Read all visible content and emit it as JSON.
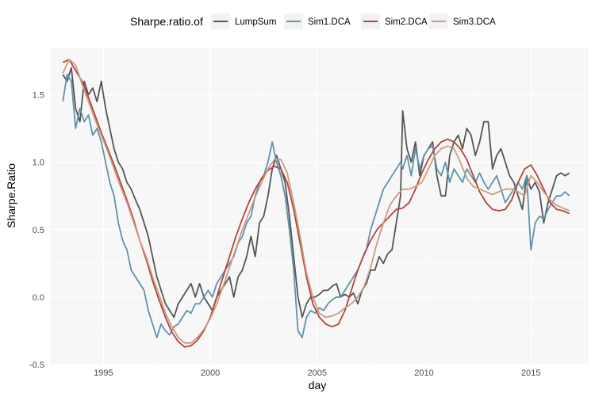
{
  "chart_data": {
    "type": "line",
    "xlabel": "day",
    "ylabel": "Sharpe.Ratio",
    "xlim": [
      1992.5,
      2017.7
    ],
    "ylim": [
      -0.5,
      1.85
    ],
    "xticks": [
      1995,
      2000,
      2005,
      2010,
      2015
    ],
    "yticks": [
      -0.5,
      0.0,
      0.5,
      1.0,
      1.5
    ],
    "xtick_labels": [
      "1995",
      "2000",
      "2005",
      "2010",
      "2015"
    ],
    "ytick_labels": [
      "-0.5",
      "0.0",
      "0.5",
      "1.0",
      "1.5"
    ],
    "grid": true,
    "legend": {
      "title": "Sharpe.ratio.of",
      "position": "top"
    },
    "series": [
      {
        "name": "LumpSum",
        "color": "#555555",
        "x": [
          1993.1,
          1993.3,
          1993.5,
          1993.7,
          1993.9,
          1994.1,
          1994.3,
          1994.5,
          1994.7,
          1994.9,
          1995.1,
          1995.3,
          1995.5,
          1995.7,
          1995.9,
          1996.1,
          1996.3,
          1996.5,
          1996.7,
          1996.9,
          1997.1,
          1997.3,
          1997.5,
          1997.7,
          1997.9,
          1998.1,
          1998.3,
          1998.5,
          1998.7,
          1998.9,
          1999.1,
          1999.3,
          1999.5,
          1999.7,
          1999.9,
          2000.1,
          2000.3,
          2000.5,
          2000.7,
          2000.9,
          2001.1,
          2001.3,
          2001.5,
          2001.7,
          2001.9,
          2002.1,
          2002.3,
          2002.5,
          2002.7,
          2002.9,
          2003.1,
          2003.3,
          2003.5,
          2003.7,
          2003.9,
          2004.1,
          2004.3,
          2004.5,
          2004.7,
          2004.9,
          2005.1,
          2005.3,
          2005.5,
          2005.7,
          2005.9,
          2006.1,
          2006.3,
          2006.5,
          2006.7,
          2006.9,
          2007.1,
          2007.3,
          2007.5,
          2007.7,
          2007.9,
          2008.1,
          2008.3,
          2008.5,
          2008.7,
          2008.9,
          2009.0,
          2009.2,
          2009.4,
          2009.6,
          2009.8,
          2010.0,
          2010.2,
          2010.4,
          2010.6,
          2010.8,
          2011.0,
          2011.2,
          2011.4,
          2011.6,
          2011.8,
          2012.0,
          2012.2,
          2012.4,
          2012.6,
          2012.8,
          2013.0,
          2013.2,
          2013.4,
          2013.6,
          2013.8,
          2014.0,
          2014.2,
          2014.4,
          2014.6,
          2014.8,
          2015.0,
          2015.2,
          2015.4,
          2015.6,
          2015.8,
          2016.0,
          2016.2,
          2016.4,
          2016.6,
          2016.8
        ],
        "values": [
          1.65,
          1.6,
          1.7,
          1.4,
          1.3,
          1.6,
          1.5,
          1.55,
          1.45,
          1.6,
          1.4,
          1.25,
          1.1,
          1.0,
          0.95,
          0.85,
          0.8,
          0.72,
          0.65,
          0.55,
          0.45,
          0.3,
          0.15,
          0.05,
          -0.05,
          -0.1,
          -0.15,
          -0.05,
          0.0,
          0.05,
          0.1,
          0.0,
          0.1,
          0.0,
          -0.05,
          -0.1,
          0.0,
          0.05,
          0.1,
          0.15,
          0.0,
          0.15,
          0.2,
          0.3,
          0.45,
          0.3,
          0.55,
          0.6,
          0.75,
          0.95,
          1.05,
          0.95,
          0.85,
          0.6,
          0.3,
          0.0,
          -0.15,
          -0.05,
          0.0,
          0.0,
          0.02,
          0.05,
          0.05,
          0.08,
          0.1,
          0.0,
          0.02,
          0.0,
          0.03,
          -0.05,
          0.05,
          0.1,
          0.2,
          0.2,
          0.3,
          0.25,
          0.32,
          0.35,
          0.55,
          0.75,
          1.38,
          1.1,
          1.0,
          1.15,
          0.9,
          1.05,
          1.1,
          1.15,
          0.9,
          0.75,
          0.75,
          1.05,
          1.15,
          1.2,
          1.1,
          1.25,
          1.2,
          1.05,
          1.15,
          1.3,
          1.3,
          0.95,
          1.05,
          1.1,
          1.0,
          0.9,
          0.85,
          0.75,
          0.65,
          0.9,
          0.8,
          0.85,
          0.78,
          0.55,
          0.7,
          0.8,
          0.9,
          0.92,
          0.9,
          0.92
        ]
      },
      {
        "name": "Sim1.DCA",
        "color": "#5f93aa",
        "x": [
          1993.1,
          1993.3,
          1993.5,
          1993.7,
          1993.9,
          1994.1,
          1994.3,
          1994.5,
          1994.7,
          1994.9,
          1995.1,
          1995.3,
          1995.5,
          1995.7,
          1995.9,
          1996.1,
          1996.3,
          1996.5,
          1996.7,
          1996.9,
          1997.1,
          1997.3,
          1997.5,
          1997.7,
          1997.9,
          1998.1,
          1998.3,
          1998.5,
          1998.7,
          1998.9,
          1999.1,
          1999.3,
          1999.5,
          1999.7,
          1999.9,
          2000.1,
          2000.3,
          2000.5,
          2000.7,
          2000.9,
          2001.1,
          2001.3,
          2001.5,
          2001.7,
          2001.9,
          2002.1,
          2002.3,
          2002.5,
          2002.7,
          2002.9,
          2003.1,
          2003.3,
          2003.5,
          2003.7,
          2003.9,
          2004.1,
          2004.3,
          2004.5,
          2004.7,
          2004.9,
          2005.1,
          2005.3,
          2005.5,
          2005.7,
          2005.9,
          2006.1,
          2006.3,
          2006.5,
          2006.7,
          2006.9,
          2007.1,
          2007.3,
          2007.5,
          2007.7,
          2007.9,
          2008.1,
          2008.3,
          2008.5,
          2008.7,
          2008.9,
          2009.0,
          2009.2,
          2009.4,
          2009.6,
          2009.8,
          2010.0,
          2010.2,
          2010.4,
          2010.6,
          2010.8,
          2011.0,
          2011.2,
          2011.4,
          2011.6,
          2011.8,
          2012.0,
          2012.2,
          2012.4,
          2012.6,
          2012.8,
          2013.0,
          2013.2,
          2013.4,
          2013.6,
          2013.8,
          2014.0,
          2014.2,
          2014.4,
          2014.6,
          2014.8,
          2015.0,
          2015.2,
          2015.4,
          2015.6,
          2015.8,
          2016.0,
          2016.2,
          2016.4,
          2016.6,
          2016.8
        ],
        "values": [
          1.45,
          1.65,
          1.6,
          1.25,
          1.4,
          1.3,
          1.35,
          1.2,
          1.25,
          1.15,
          1.0,
          0.85,
          0.75,
          0.55,
          0.42,
          0.35,
          0.2,
          0.15,
          0.1,
          0.05,
          -0.1,
          -0.2,
          -0.3,
          -0.2,
          -0.25,
          -0.28,
          -0.22,
          -0.2,
          -0.15,
          -0.1,
          -0.12,
          -0.05,
          -0.05,
          0.0,
          0.05,
          0.0,
          0.1,
          0.15,
          0.2,
          0.25,
          0.3,
          0.4,
          0.45,
          0.55,
          0.6,
          0.75,
          0.85,
          0.9,
          1.0,
          1.15,
          1.0,
          0.9,
          0.75,
          0.5,
          0.2,
          -0.25,
          -0.3,
          -0.15,
          -0.1,
          -0.12,
          -0.08,
          -0.1,
          -0.05,
          -0.02,
          0.0,
          0.0,
          0.05,
          0.1,
          0.15,
          0.2,
          0.28,
          0.35,
          0.5,
          0.6,
          0.7,
          0.8,
          0.85,
          0.9,
          0.95,
          1.0,
          0.95,
          1.05,
          0.9,
          1.1,
          0.95,
          1.05,
          1.1,
          1.12,
          0.95,
          0.9,
          1.0,
          0.85,
          0.95,
          0.9,
          0.85,
          0.95,
          0.9,
          0.85,
          0.92,
          0.85,
          0.8,
          0.85,
          0.9,
          0.8,
          0.7,
          0.75,
          0.8,
          0.85,
          0.8,
          0.9,
          0.35,
          0.55,
          0.6,
          0.58,
          0.65,
          0.7,
          0.75,
          0.75,
          0.78,
          0.75
        ]
      },
      {
        "name": "Sim2.DCA",
        "color": "#b5433a",
        "x": [
          1993.1,
          1993.4,
          1993.7,
          1994.0,
          1994.3,
          1994.6,
          1994.9,
          1995.2,
          1995.5,
          1995.8,
          1996.1,
          1996.4,
          1996.7,
          1997.0,
          1997.3,
          1997.6,
          1997.9,
          1998.2,
          1998.5,
          1998.8,
          1999.1,
          1999.4,
          1999.7,
          2000.0,
          2000.3,
          2000.6,
          2000.9,
          2001.2,
          2001.5,
          2001.8,
          2002.1,
          2002.4,
          2002.7,
          2003.0,
          2003.3,
          2003.6,
          2003.9,
          2004.2,
          2004.5,
          2004.8,
          2005.1,
          2005.4,
          2005.7,
          2006.0,
          2006.3,
          2006.6,
          2006.9,
          2007.2,
          2007.5,
          2007.8,
          2008.1,
          2008.4,
          2008.7,
          2009.0,
          2009.3,
          2009.6,
          2009.9,
          2010.2,
          2010.5,
          2010.8,
          2011.1,
          2011.4,
          2011.7,
          2012.0,
          2012.3,
          2012.6,
          2012.9,
          2013.2,
          2013.5,
          2013.8,
          2014.1,
          2014.4,
          2014.7,
          2015.0,
          2015.3,
          2015.6,
          2015.9,
          2016.2,
          2016.5,
          2016.8
        ],
        "values": [
          1.74,
          1.76,
          1.68,
          1.6,
          1.48,
          1.35,
          1.22,
          1.1,
          0.98,
          0.85,
          0.72,
          0.58,
          0.42,
          0.28,
          0.12,
          -0.02,
          -0.15,
          -0.26,
          -0.33,
          -0.37,
          -0.36,
          -0.32,
          -0.25,
          -0.15,
          0.0,
          0.15,
          0.3,
          0.45,
          0.58,
          0.7,
          0.8,
          0.88,
          0.94,
          0.97,
          0.95,
          0.85,
          0.65,
          0.4,
          0.15,
          -0.05,
          -0.15,
          -0.2,
          -0.22,
          -0.2,
          -0.1,
          0.05,
          0.2,
          0.32,
          0.42,
          0.5,
          0.55,
          0.6,
          0.65,
          0.66,
          0.7,
          0.8,
          0.92,
          1.02,
          1.1,
          1.15,
          1.17,
          1.15,
          1.1,
          1.02,
          0.9,
          0.78,
          0.7,
          0.65,
          0.64,
          0.65,
          0.72,
          0.85,
          0.95,
          0.98,
          0.9,
          0.8,
          0.7,
          0.65,
          0.64,
          0.62
        ]
      },
      {
        "name": "Sim3.DCA",
        "color": "#c99d82",
        "x": [
          1993.1,
          1993.4,
          1993.7,
          1994.0,
          1994.3,
          1994.6,
          1994.9,
          1995.2,
          1995.5,
          1995.8,
          1996.1,
          1996.4,
          1996.7,
          1997.0,
          1997.3,
          1997.6,
          1997.9,
          1998.2,
          1998.5,
          1998.8,
          1999.1,
          1999.4,
          1999.7,
          2000.0,
          2000.3,
          2000.6,
          2000.9,
          2001.2,
          2001.5,
          2001.8,
          2002.1,
          2002.4,
          2002.7,
          2003.0,
          2003.3,
          2003.6,
          2003.9,
          2004.2,
          2004.5,
          2004.8,
          2005.1,
          2005.4,
          2005.7,
          2006.0,
          2006.3,
          2006.6,
          2006.9,
          2007.2,
          2007.5,
          2007.8,
          2008.1,
          2008.4,
          2008.7,
          2009.0,
          2009.3,
          2009.6,
          2009.9,
          2010.2,
          2010.5,
          2010.8,
          2011.1,
          2011.4,
          2011.7,
          2012.0,
          2012.3,
          2012.6,
          2012.9,
          2013.2,
          2013.5,
          2013.8,
          2014.1,
          2014.4,
          2014.7,
          2015.0,
          2015.3,
          2015.6,
          2015.9,
          2016.2,
          2016.5,
          2016.8
        ],
        "values": [
          1.66,
          1.76,
          1.72,
          1.58,
          1.45,
          1.32,
          1.2,
          1.08,
          0.95,
          0.82,
          0.7,
          0.56,
          0.42,
          0.3,
          0.15,
          0.02,
          -0.12,
          -0.22,
          -0.3,
          -0.34,
          -0.34,
          -0.3,
          -0.24,
          -0.16,
          -0.05,
          0.08,
          0.22,
          0.36,
          0.5,
          0.62,
          0.74,
          0.85,
          0.95,
          1.02,
          1.02,
          0.92,
          0.7,
          0.45,
          0.18,
          0.0,
          -0.12,
          -0.15,
          -0.14,
          -0.12,
          -0.08,
          -0.05,
          0.0,
          0.08,
          0.22,
          0.4,
          0.55,
          0.68,
          0.75,
          0.8,
          0.8,
          0.82,
          0.85,
          0.95,
          1.05,
          1.1,
          1.12,
          1.1,
          1.0,
          0.88,
          0.82,
          0.8,
          0.78,
          0.76,
          0.78,
          0.8,
          0.8,
          0.78,
          0.75,
          0.9,
          0.85,
          0.78,
          0.72,
          0.68,
          0.66,
          0.64
        ]
      }
    ]
  }
}
